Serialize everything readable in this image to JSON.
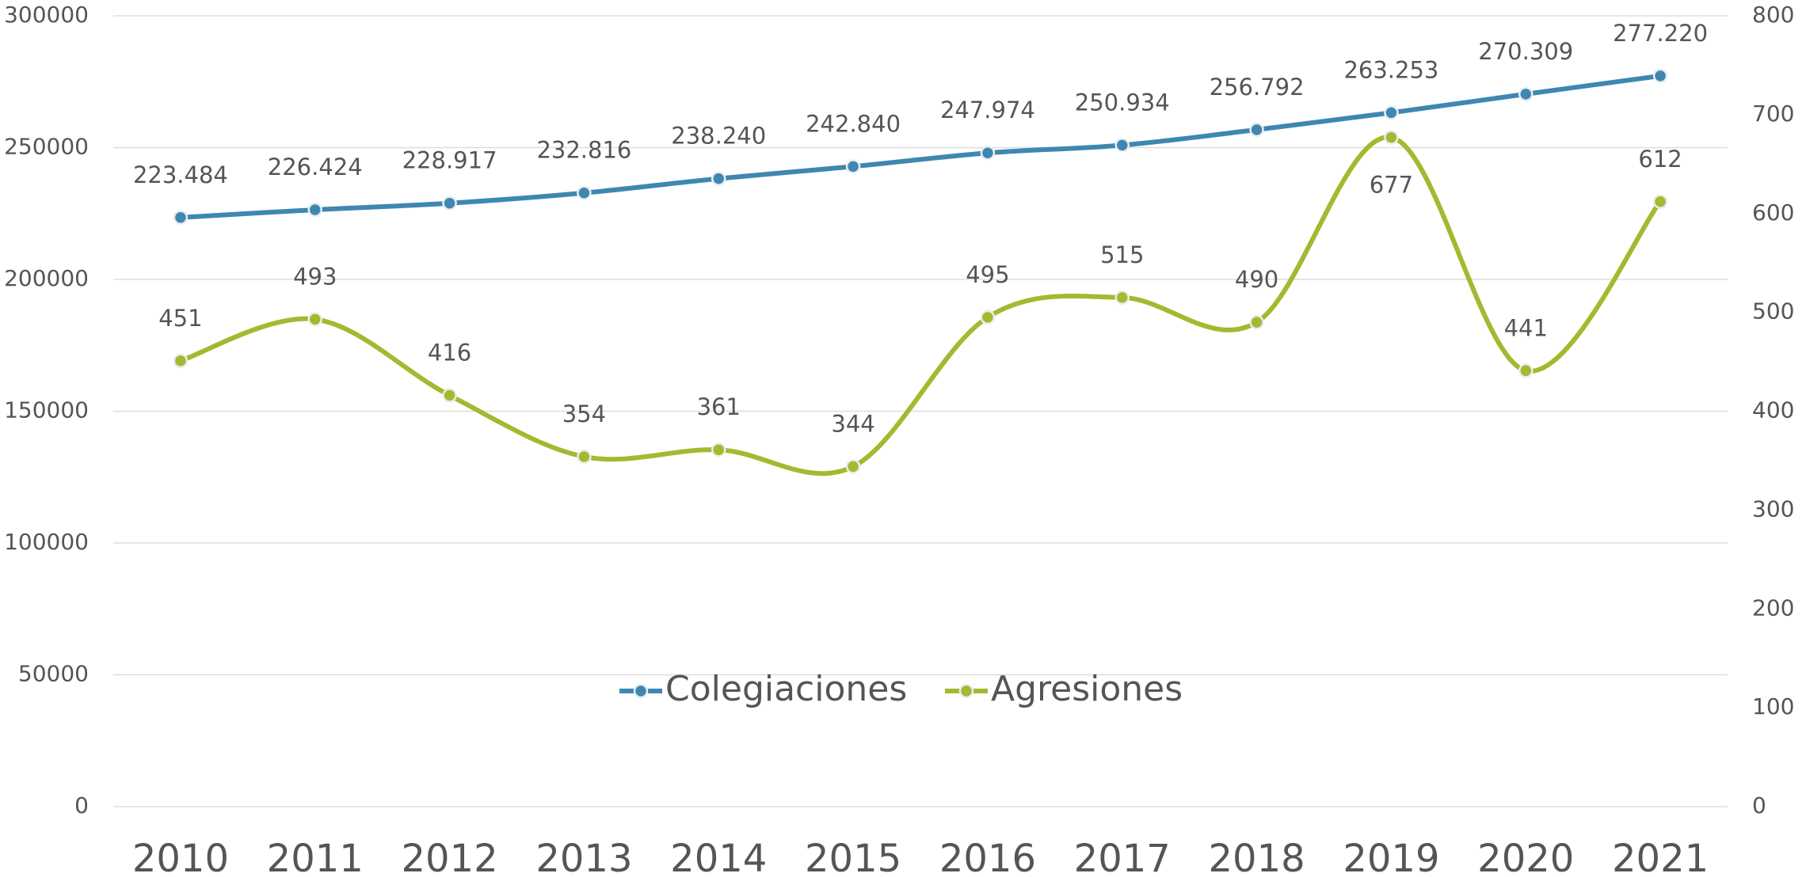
{
  "chart_data": {
    "type": "line",
    "categories": [
      "2010",
      "2011",
      "2012",
      "2013",
      "2014",
      "2015",
      "2016",
      "2017",
      "2018",
      "2019",
      "2020",
      "2021"
    ],
    "series": [
      {
        "name": "Colegiaciones",
        "color": "#3f87b0",
        "axis": "y",
        "values": [
          223484,
          226424,
          228917,
          232816,
          238240,
          242840,
          247974,
          250934,
          256792,
          263253,
          270309,
          277220
        ],
        "value_labels": [
          "223.484",
          "226.424",
          "228.917",
          "232.816",
          "238.240",
          "242.840",
          "247.974",
          "250.934",
          "256.792",
          "263.253",
          "270.309",
          "277.220"
        ]
      },
      {
        "name": "Agresiones",
        "color": "#a4b92f",
        "axis": "y2",
        "values": [
          451,
          493,
          416,
          354,
          361,
          344,
          495,
          515,
          490,
          677,
          441,
          612
        ]
      }
    ],
    "ylim": [
      0,
      300000
    ],
    "yticks": [
      0,
      50000,
      100000,
      150000,
      200000,
      250000,
      300000
    ],
    "y2lim": [
      0,
      800
    ],
    "y2ticks": [
      0,
      100,
      200,
      300,
      400,
      500,
      600,
      700,
      800
    ],
    "grid": true,
    "legend": "center"
  }
}
